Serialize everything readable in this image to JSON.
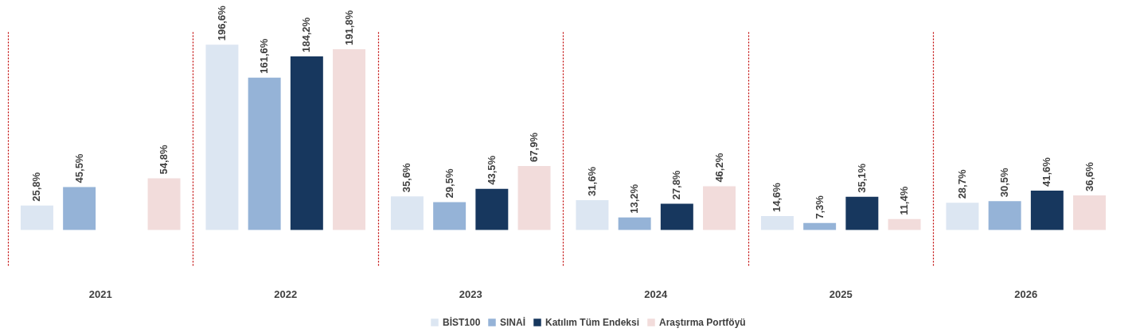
{
  "chart_data": {
    "type": "bar",
    "categories": [
      "2021",
      "2022",
      "2023",
      "2024",
      "2025",
      "2026"
    ],
    "series": [
      {
        "name": "BİST100",
        "color": "#dce6f2",
        "values": [
          25.8,
          196.6,
          35.6,
          31.6,
          14.6,
          28.7
        ],
        "value_labels": [
          "25,8%",
          "196,6%",
          "35,6%",
          "31,6%",
          "14,6%",
          "28,7%"
        ]
      },
      {
        "name": "SINAİ",
        "color": "#95b3d7",
        "values": [
          45.5,
          161.6,
          29.5,
          13.2,
          7.3,
          30.5
        ],
        "value_labels": [
          "45,5%",
          "161,6%",
          "29,5%",
          "13,2%",
          "7,3%",
          "30,5%"
        ]
      },
      {
        "name": "Katılım Tüm Endeksi",
        "color": "#17375e",
        "values": [
          null,
          184.2,
          43.5,
          27.8,
          35.1,
          41.6
        ],
        "value_labels": [
          null,
          "184,2%",
          "43,5%",
          "27,8%",
          "35,1%",
          "41,6%"
        ]
      },
      {
        "name": "Araştırma Portföyü",
        "color": "#f2dcdb",
        "values": [
          54.8,
          191.8,
          67.9,
          46.2,
          11.4,
          36.6
        ],
        "value_labels": [
          "54,8%",
          "191,8%",
          "67,9%",
          "46,2%",
          "11,4%",
          "36,6%"
        ]
      }
    ],
    "grid": "x",
    "legend": "bottom"
  }
}
